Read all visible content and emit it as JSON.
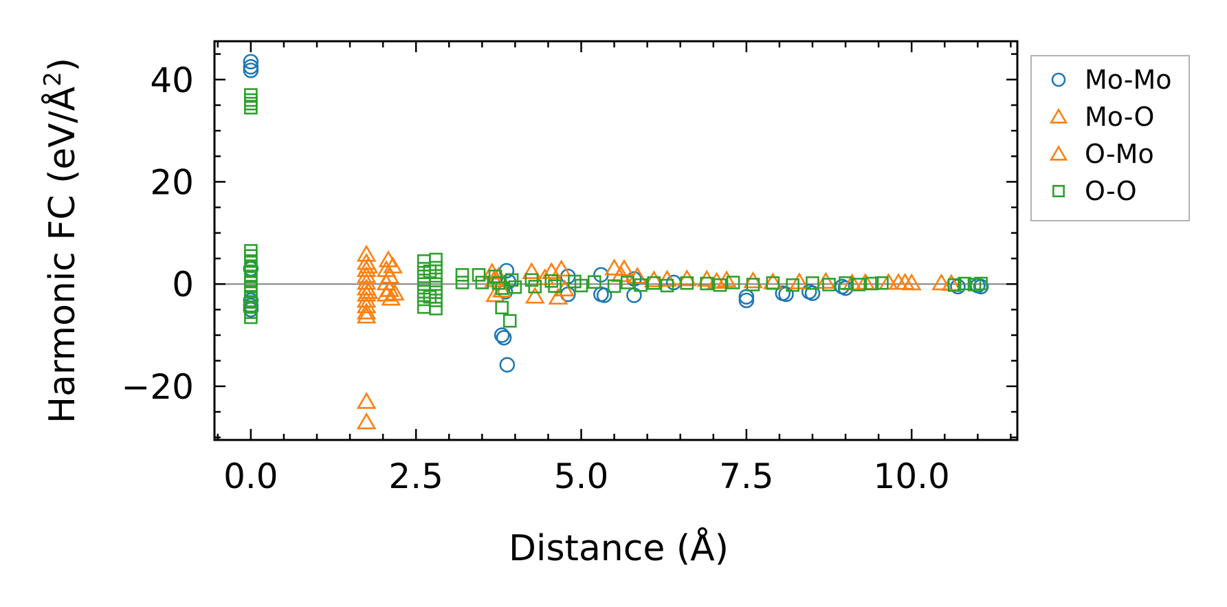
{
  "chart_data": {
    "type": "scatter",
    "title": "",
    "xlabel": "Distance (Å)",
    "ylabel_main": "Harmonic FC (eV/Å",
    "ylabel_sup": "2",
    "ylabel_close": ")",
    "xlim": [
      -0.55,
      11.6
    ],
    "ylim": [
      -30.5,
      47.5
    ],
    "xticks": [
      0.0,
      2.5,
      5.0,
      7.5,
      10.0
    ],
    "xtick_labels": [
      "0.0",
      "2.5",
      "5.0",
      "7.5",
      "10.0"
    ],
    "yticks": [
      -20,
      0,
      20,
      40
    ],
    "ytick_labels": [
      "−20",
      "0",
      "20",
      "40"
    ],
    "zero_line": 0,
    "legend_position": "outside-right",
    "series": [
      {
        "name": "Mo-Mo",
        "marker": "circle",
        "color": "#1f77b4",
        "points": [
          [
            0,
            43.5
          ],
          [
            0,
            42.5
          ],
          [
            0,
            41.8
          ],
          [
            0,
            3
          ],
          [
            0,
            -3.2
          ],
          [
            0,
            -4.2
          ],
          [
            0,
            -5
          ],
          [
            3.8,
            -10
          ],
          [
            3.83,
            -10.5
          ],
          [
            3.88,
            -15.8
          ],
          [
            3.87,
            2.6
          ],
          [
            3.85,
            -1.5
          ],
          [
            3.9,
            0.5
          ],
          [
            4.8,
            1.5
          ],
          [
            4.8,
            -2
          ],
          [
            5.3,
            1.8
          ],
          [
            5.3,
            -2
          ],
          [
            5.35,
            -2.2
          ],
          [
            5.8,
            -2.2
          ],
          [
            5.8,
            1
          ],
          [
            6.4,
            0.3
          ],
          [
            7.5,
            -2.5
          ],
          [
            7.5,
            -3.2
          ],
          [
            8.05,
            -1.8
          ],
          [
            8.1,
            -2
          ],
          [
            8.45,
            -1.5
          ],
          [
            8.5,
            -1.8
          ],
          [
            8.95,
            -0.5
          ],
          [
            9.0,
            -0.8
          ],
          [
            10.7,
            -0.5
          ],
          [
            11.0,
            -0.3
          ],
          [
            11.05,
            -0.5
          ]
        ]
      },
      {
        "name": "Mo-O",
        "marker": "triangle",
        "color": "#ff7f0e",
        "points": [
          [
            1.75,
            5.8
          ],
          [
            1.75,
            4.2
          ],
          [
            1.75,
            2.8
          ],
          [
            1.75,
            1.6
          ],
          [
            1.75,
            0.3
          ],
          [
            1.75,
            -0.8
          ],
          [
            1.75,
            -2
          ],
          [
            1.75,
            -3.2
          ],
          [
            1.75,
            -4.3
          ],
          [
            1.75,
            -5.5
          ],
          [
            1.75,
            -6.3
          ],
          [
            1.75,
            -23
          ],
          [
            1.75,
            -27
          ],
          [
            2.08,
            4.7
          ],
          [
            2.05,
            2.8
          ],
          [
            2.1,
            1.5
          ],
          [
            2.05,
            0.2
          ],
          [
            2.1,
            -1.1
          ],
          [
            2.05,
            -2
          ],
          [
            2.12,
            -2.8
          ],
          [
            3.65,
            2.3
          ],
          [
            3.7,
            -2.1
          ],
          [
            3.68,
            0.8
          ],
          [
            4.25,
            2.4
          ],
          [
            4.3,
            -2.4
          ],
          [
            4.55,
            2.4
          ],
          [
            4.65,
            -2.6
          ],
          [
            4.7,
            2.9
          ],
          [
            5.5,
            3.1
          ],
          [
            5.65,
            3
          ],
          [
            5.85,
            1.5
          ],
          [
            6.1,
            0.8
          ],
          [
            6.6,
            1
          ],
          [
            6.9,
            0.9
          ],
          [
            7.2,
            0.8
          ],
          [
            7.6,
            0.6
          ],
          [
            8.3,
            0.4
          ],
          [
            8.7,
            0.5
          ],
          [
            9.3,
            0.3
          ],
          [
            9.65,
            0.3
          ],
          [
            9.9,
            0.3
          ],
          [
            10.0,
            0.2
          ],
          [
            10.45,
            0.2
          ],
          [
            10.6,
            0.1
          ]
        ]
      },
      {
        "name": "O-Mo",
        "marker": "triangle",
        "color": "#ff7f0e",
        "points": [
          [
            1.78,
            3.5
          ],
          [
            1.78,
            -1.5
          ],
          [
            2.15,
            3.5
          ],
          [
            2.18,
            -1.8
          ],
          [
            3.75,
            1.5
          ],
          [
            3.8,
            -1.2
          ],
          [
            4.45,
            1.2
          ],
          [
            4.75,
            -1
          ],
          [
            5.6,
            1.8
          ],
          [
            6.3,
            0.9
          ],
          [
            7.05,
            0.5
          ],
          [
            7.9,
            0.4
          ],
          [
            9.1,
            0.2
          ],
          [
            9.8,
            0.3
          ]
        ]
      },
      {
        "name": "O-O",
        "marker": "square",
        "color": "#2ca02c",
        "points": [
          [
            0,
            37
          ],
          [
            0,
            36
          ],
          [
            0,
            35.3
          ],
          [
            0,
            34.5
          ],
          [
            0,
            6.5
          ],
          [
            0,
            5.5
          ],
          [
            0,
            4.5
          ],
          [
            0,
            3.5
          ],
          [
            0,
            2.5
          ],
          [
            0,
            1.5
          ],
          [
            0,
            0.5
          ],
          [
            0,
            -0.5
          ],
          [
            0,
            -1.5
          ],
          [
            0,
            -2.5
          ],
          [
            0,
            -3.5
          ],
          [
            0,
            -4.5
          ],
          [
            0,
            -5.5
          ],
          [
            0,
            -6.5
          ],
          [
            2.62,
            4.5
          ],
          [
            2.62,
            3
          ],
          [
            2.62,
            1.5
          ],
          [
            2.62,
            0
          ],
          [
            2.62,
            -1.5
          ],
          [
            2.62,
            -3
          ],
          [
            2.62,
            -4.5
          ],
          [
            2.8,
            4.8
          ],
          [
            2.8,
            3.2
          ],
          [
            2.8,
            1.6
          ],
          [
            2.8,
            0
          ],
          [
            2.8,
            -1.6
          ],
          [
            2.8,
            -3.2
          ],
          [
            2.8,
            -4.8
          ],
          [
            2.71,
            2.5
          ],
          [
            2.71,
            -2.5
          ],
          [
            3.2,
            1.8
          ],
          [
            3.2,
            0.3
          ],
          [
            3.45,
            1.8
          ],
          [
            3.5,
            0.3
          ],
          [
            3.7,
            1.5
          ],
          [
            3.75,
            0.2
          ],
          [
            3.8,
            -0.8
          ],
          [
            3.8,
            -4.6
          ],
          [
            3.92,
            -7.2
          ],
          [
            3.95,
            0.8
          ],
          [
            4.0,
            -0.6
          ],
          [
            4.25,
            0.8
          ],
          [
            4.3,
            -0.5
          ],
          [
            4.55,
            0.6
          ],
          [
            4.6,
            -0.4
          ],
          [
            4.9,
            0.5
          ],
          [
            5.0,
            -0.3
          ],
          [
            5.2,
            0.4
          ],
          [
            5.5,
            -0.4
          ],
          [
            5.7,
            0.3
          ],
          [
            5.9,
            -0.2
          ],
          [
            6.1,
            0.2
          ],
          [
            6.3,
            -0.3
          ],
          [
            6.6,
            0.2
          ],
          [
            6.9,
            0.1
          ],
          [
            7.1,
            -0.2
          ],
          [
            7.3,
            0.3
          ],
          [
            7.6,
            -0.1
          ],
          [
            7.9,
            0.2
          ],
          [
            8.2,
            -0.2
          ],
          [
            8.5,
            0.2
          ],
          [
            8.75,
            -0.1
          ],
          [
            9.0,
            0.2
          ],
          [
            9.2,
            -0.1
          ],
          [
            9.4,
            0.1
          ],
          [
            9.55,
            0.2
          ],
          [
            10.65,
            -0.2
          ],
          [
            10.8,
            0.1
          ],
          [
            10.95,
            -0.1
          ],
          [
            11.05,
            0.1
          ]
        ]
      }
    ]
  }
}
